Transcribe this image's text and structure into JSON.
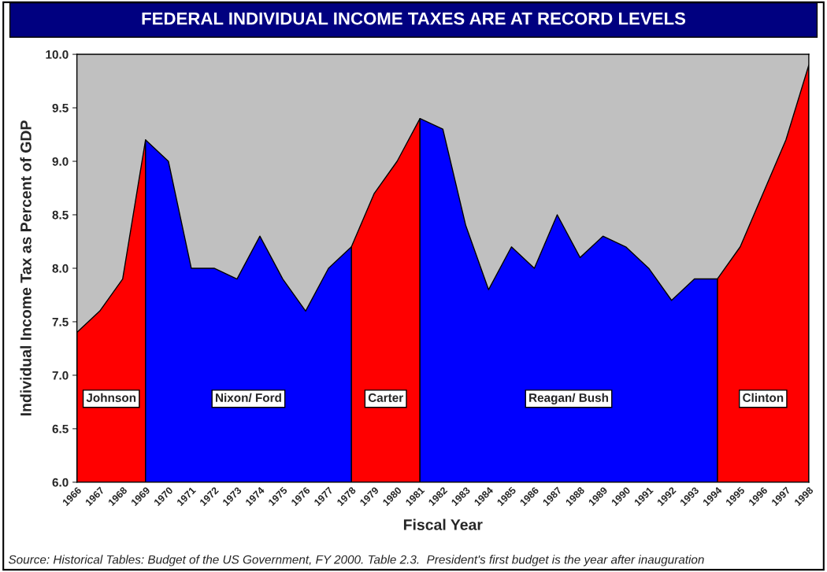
{
  "chart_data": {
    "type": "area",
    "title": "FEDERAL INDIVIDUAL INCOME TAXES ARE AT RECORD LEVELS",
    "xlabel": "Fiscal Year",
    "ylabel": "Individual Income Tax as Percent of GDP",
    "categories": [
      "1966",
      "1967",
      "1968",
      "1969",
      "1970",
      "1971",
      "1972",
      "1973",
      "1974",
      "1975",
      "1976",
      "1977",
      "1978",
      "1979",
      "1980",
      "1981",
      "1982",
      "1983",
      "1984",
      "1985",
      "1986",
      "1987",
      "1988",
      "1989",
      "1990",
      "1991",
      "1992",
      "1993",
      "1994",
      "1995",
      "1996",
      "1997",
      "1998"
    ],
    "series": [
      {
        "color": "#ff0000",
        "values": [
          7.4,
          7.6,
          7.9,
          9.2,
          null,
          null,
          null,
          null,
          null,
          null,
          null,
          null,
          8.2,
          8.7,
          9.0,
          9.4,
          null,
          null,
          null,
          null,
          null,
          null,
          null,
          null,
          null,
          null,
          null,
          null,
          7.9,
          8.2,
          8.7,
          9.2,
          9.9
        ]
      },
      {
        "color": "#0000ff",
        "values": [
          null,
          null,
          null,
          9.2,
          9.0,
          8.0,
          8.0,
          7.9,
          8.3,
          7.9,
          7.6,
          8.0,
          8.2,
          null,
          null,
          9.4,
          9.3,
          8.4,
          7.8,
          8.2,
          8.0,
          8.5,
          8.1,
          8.3,
          8.2,
          8.0,
          7.7,
          7.9,
          7.9,
          null,
          null,
          null,
          null
        ]
      }
    ],
    "ylim": [
      6.0,
      10.0
    ],
    "yticks": [
      {
        "value": 6.0,
        "label": "6.0"
      },
      6.5,
      {
        "value": 7.0,
        "label": "7.0"
      },
      7.5,
      {
        "value": 8.0,
        "label": "8.0"
      },
      8.5,
      {
        "value": 9.0,
        "label": "9.0"
      },
      9.5,
      {
        "value": 10.0,
        "label": "10.0"
      }
    ],
    "grid": false,
    "legend": false,
    "annotations": [
      "Johnson",
      "Nixon/ Ford",
      "Carter",
      "Reagan/ Bush",
      "Clinton",
      "Source: Historical Tables: Budget of the US Government, FY 2000. Table 2.3.  President's first budget is the year after inauguration"
    ]
  }
}
